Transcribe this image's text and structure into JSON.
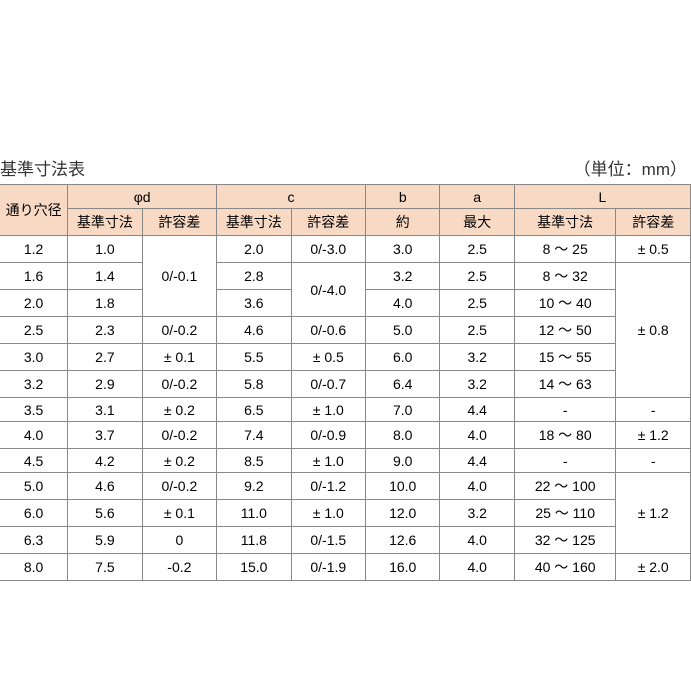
{
  "title": "基準寸法表",
  "unit": "（単位：mm）",
  "header": {
    "hole": "通り穴径",
    "groups": {
      "phi_d": "φd",
      "c": "c",
      "b": "b",
      "a": "a",
      "L": "L"
    },
    "sub": {
      "base": "基準寸法",
      "tol": "許容差",
      "approx": "約",
      "max": "最大"
    }
  },
  "rows": [
    {
      "hole": "1.2",
      "d_base": "1.0",
      "d_tol": null,
      "c_base": "2.0",
      "c_tol": "0/-3.0",
      "b": "3.0",
      "a": "2.5",
      "L_base": "8 ～ 25",
      "L_tol": "± 0.5"
    },
    {
      "hole": "1.6",
      "d_base": "1.4",
      "d_tol": null,
      "c_base": "2.8",
      "c_tol": null,
      "b": "3.2",
      "a": "2.5",
      "L_base": "8 ～ 32",
      "L_tol": null
    },
    {
      "hole": "2.0",
      "d_base": "1.8",
      "d_tol": null,
      "c_base": "3.6",
      "c_tol": null,
      "b": "4.0",
      "a": "2.5",
      "L_base": "10 ～ 40",
      "L_tol": null
    },
    {
      "hole": "2.5",
      "d_base": "2.3",
      "d_tol": "0/-0.2",
      "c_base": "4.6",
      "c_tol": "0/-0.6",
      "b": "5.0",
      "a": "2.5",
      "L_base": "12 ～ 50",
      "L_tol": null
    },
    {
      "hole": "3.0",
      "d_base": "2.7",
      "d_tol": "± 0.1",
      "c_base": "5.5",
      "c_tol": "± 0.5",
      "b": "6.0",
      "a": "3.2",
      "L_base": "15 ～ 55",
      "L_tol": null
    },
    {
      "hole": "3.2",
      "d_base": "2.9",
      "d_tol": "0/-0.2",
      "c_base": "5.8",
      "c_tol": "0/-0.7",
      "b": "6.4",
      "a": "3.2",
      "L_base": "14 ～ 63",
      "L_tol": null
    },
    {
      "hole": "3.5",
      "d_base": "3.1",
      "d_tol": "± 0.2",
      "c_base": "6.5",
      "c_tol": "± 1.0",
      "b": "7.0",
      "a": "4.4",
      "L_base": "-",
      "L_tol": "-"
    },
    {
      "hole": "4.0",
      "d_base": "3.7",
      "d_tol": "0/-0.2",
      "c_base": "7.4",
      "c_tol": "0/-0.9",
      "b": "8.0",
      "a": "4.0",
      "L_base": "18 ～ 80",
      "L_tol": "± 1.2"
    },
    {
      "hole": "4.5",
      "d_base": "4.2",
      "d_tol": "± 0.2",
      "c_base": "8.5",
      "c_tol": "± 1.0",
      "b": "9.0",
      "a": "4.4",
      "L_base": "-",
      "L_tol": "-"
    },
    {
      "hole": "5.0",
      "d_base": "4.6",
      "d_tol": "0/-0.2",
      "c_base": "9.2",
      "c_tol": "0/-1.2",
      "b": "10.0",
      "a": "4.0",
      "L_base": "22 ～ 100",
      "L_tol": null
    },
    {
      "hole": "6.0",
      "d_base": "5.6",
      "d_tol": "± 0.1",
      "c_base": "11.0",
      "c_tol": "± 1.0",
      "b": "12.0",
      "a": "3.2",
      "L_base": "25 ～ 110",
      "L_tol": null
    },
    {
      "hole": "6.3",
      "d_base": "5.9",
      "d_tol": "0",
      "c_base": "11.8",
      "c_tol": "0/-1.5",
      "b": "12.6",
      "a": "4.0",
      "L_base": "32 ～ 125",
      "L_tol": null
    },
    {
      "hole": "8.0",
      "d_base": "7.5",
      "d_tol": "-0.2",
      "c_base": "15.0",
      "c_tol": "0/-1.9",
      "b": "16.0",
      "a": "4.0",
      "L_base": "40 ～ 160",
      "L_tol": "± 2.0"
    }
  ],
  "spans": {
    "d_tol_row0": {
      "text": "0/-0.1",
      "rows": 3
    },
    "c_tol_row1": {
      "text": "0/-4.0",
      "rows": 2
    },
    "L_tol_row1": {
      "text": "± 0.8",
      "rows": 5
    },
    "L_tol_row9": {
      "text": "± 1.2",
      "rows": 3
    }
  },
  "style": {
    "header_bg": "#f7d9c4",
    "border_color": "#888888",
    "font_size": 14,
    "title_font_size": 17
  }
}
